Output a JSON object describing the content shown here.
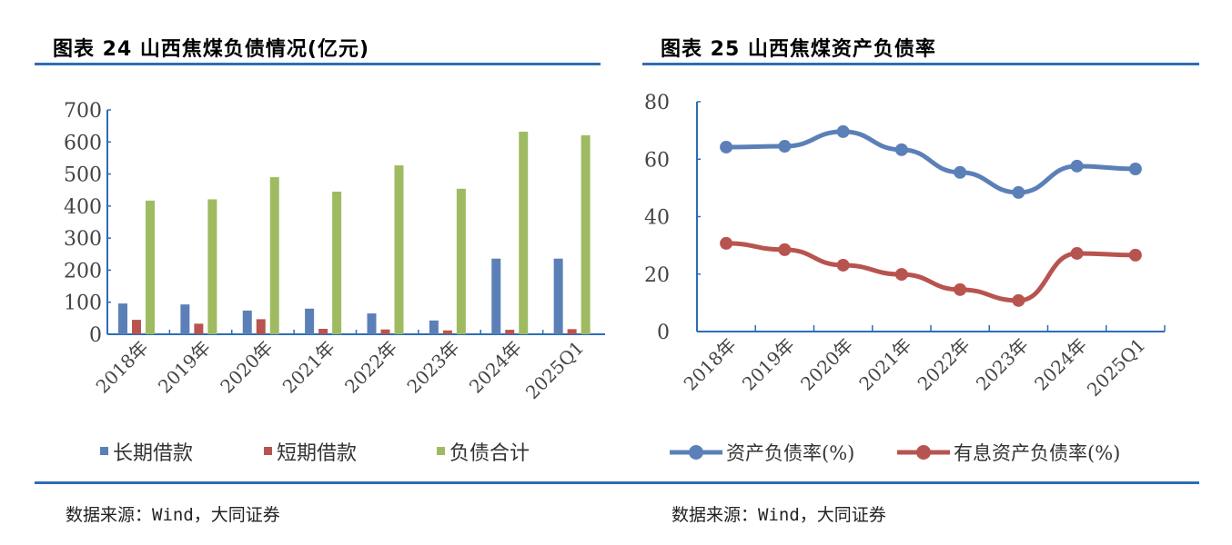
{
  "left": {
    "title": "图表 24  山西焦煤负债情况(亿元)",
    "source": "数据来源：Wind，大同证券"
  },
  "right": {
    "title": "图表 25  山西焦煤资产负债率",
    "source": "数据来源：Wind，大同证券"
  },
  "chart_data": [
    {
      "type": "bar",
      "title": "图表 24  山西焦煤负债情况(亿元)",
      "categories": [
        "2018年",
        "2019年",
        "2020年",
        "2021年",
        "2022年",
        "2023年",
        "2024年",
        "2025Q1"
      ],
      "ylim": [
        0,
        700
      ],
      "yticks": [
        0,
        100,
        200,
        300,
        400,
        500,
        600,
        700
      ],
      "legend": "bottom",
      "grid": false,
      "series": [
        {
          "name": "长期借款",
          "color": "#5b80b8",
          "values": [
            96,
            93,
            74,
            80,
            65,
            43,
            236,
            236
          ]
        },
        {
          "name": "短期借款",
          "color": "#b85450",
          "values": [
            45,
            33,
            47,
            17,
            15,
            12,
            14,
            16
          ]
        },
        {
          "name": "负债合计",
          "color": "#9fbb62",
          "values": [
            417,
            421,
            490,
            445,
            527,
            454,
            632,
            621
          ]
        }
      ]
    },
    {
      "type": "line",
      "title": "图表 25  山西焦煤资产负债率",
      "categories": [
        "2018年",
        "2019年",
        "2020年",
        "2021年",
        "2022年",
        "2023年",
        "2024年",
        "2025Q1"
      ],
      "ylim": [
        0,
        80
      ],
      "yticks": [
        0,
        20,
        40,
        60,
        80
      ],
      "legend": "bottom",
      "grid": false,
      "series": [
        {
          "name": "资产负债率(%)",
          "color": "#5b80b8",
          "values": [
            64.2,
            64.5,
            69.6,
            63.3,
            55.4,
            48.4,
            57.6,
            56.6
          ]
        },
        {
          "name": "有息资产负债率(%)",
          "color": "#b85450",
          "values": [
            30.7,
            28.5,
            23.1,
            19.9,
            14.6,
            10.8,
            27.2,
            26.6
          ]
        }
      ]
    }
  ]
}
